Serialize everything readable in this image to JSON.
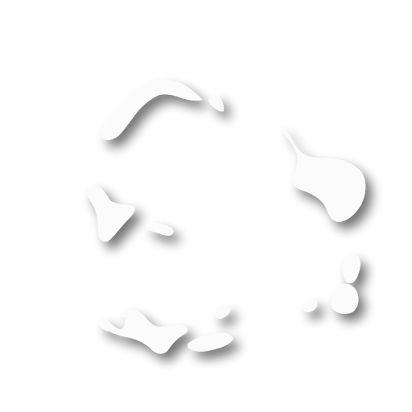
{
  "scene": {
    "background_color": "#ffffff",
    "fragment_fill": "#fbfbfb",
    "shadow_color": "#9a9a9a",
    "fragments": [
      "arc-fragment-top",
      "chip-top-right",
      "flap-left",
      "dot-left-small",
      "wing-right",
      "blob-right-upper",
      "blob-right-lower",
      "dot-right-small",
      "cluster-bottom-left",
      "chip-bottom-small"
    ]
  }
}
